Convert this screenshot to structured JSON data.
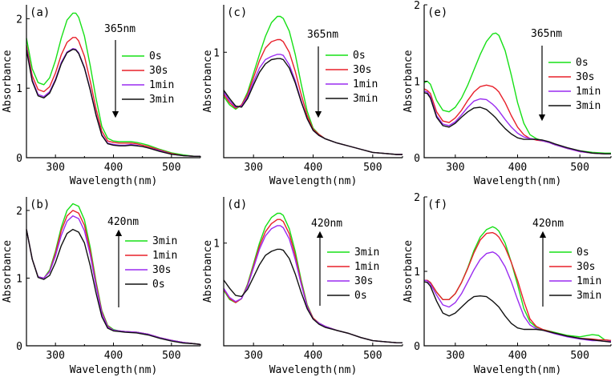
{
  "colors": {
    "green": "#17e017",
    "red": "#e8202a",
    "purple": "#9a2cf0",
    "black": "#111111"
  },
  "chart_data": [
    {
      "type": "line",
      "panel_label": "(a)",
      "annotation": "365nm",
      "arrow": "down",
      "xlabel": "Wavelength(nm)",
      "ylabel": "Absorbance",
      "xlim": [
        250,
        550
      ],
      "ylim": [
        0,
        2.2
      ],
      "xticks": [
        300,
        400,
        500
      ],
      "yticks": [
        0,
        1,
        2
      ],
      "x": [
        250,
        260,
        270,
        280,
        290,
        300,
        310,
        320,
        330,
        335,
        340,
        350,
        360,
        370,
        380,
        390,
        400,
        410,
        420,
        430,
        440,
        450,
        460,
        480,
        500,
        520,
        540,
        550
      ],
      "series": [
        {
          "name": "0s",
          "color": "green",
          "values": [
            1.72,
            1.28,
            1.08,
            1.05,
            1.15,
            1.4,
            1.72,
            1.98,
            2.08,
            2.08,
            2.02,
            1.75,
            1.32,
            0.85,
            0.45,
            0.28,
            0.24,
            0.23,
            0.23,
            0.23,
            0.22,
            0.2,
            0.18,
            0.12,
            0.07,
            0.04,
            0.02,
            0.02
          ]
        },
        {
          "name": "30s",
          "color": "red",
          "values": [
            1.62,
            1.18,
            0.98,
            0.95,
            1.02,
            1.22,
            1.48,
            1.66,
            1.73,
            1.73,
            1.68,
            1.46,
            1.1,
            0.7,
            0.38,
            0.24,
            0.22,
            0.21,
            0.21,
            0.21,
            0.2,
            0.18,
            0.16,
            0.11,
            0.06,
            0.03,
            0.02,
            0.02
          ]
        },
        {
          "name": "1min",
          "color": "purple",
          "values": [
            1.58,
            1.12,
            0.91,
            0.88,
            0.95,
            1.13,
            1.37,
            1.52,
            1.57,
            1.56,
            1.51,
            1.3,
            0.98,
            0.62,
            0.33,
            0.21,
            0.19,
            0.18,
            0.18,
            0.19,
            0.18,
            0.16,
            0.14,
            0.1,
            0.05,
            0.03,
            0.02,
            0.02
          ]
        },
        {
          "name": "3min",
          "color": "black",
          "values": [
            1.55,
            1.1,
            0.89,
            0.86,
            0.93,
            1.11,
            1.35,
            1.51,
            1.56,
            1.55,
            1.5,
            1.29,
            0.97,
            0.61,
            0.32,
            0.2,
            0.18,
            0.17,
            0.17,
            0.18,
            0.17,
            0.16,
            0.14,
            0.09,
            0.05,
            0.03,
            0.02,
            0.02
          ]
        }
      ]
    },
    {
      "type": "line",
      "panel_label": "(c)",
      "annotation": "365nm",
      "arrow": "down",
      "xlabel": "Wavelength(nm)",
      "ylabel": "Absorbance",
      "xlim": [
        250,
        550
      ],
      "ylim": [
        0,
        1.45
      ],
      "xticks": [
        300,
        400,
        500
      ],
      "yticks": [
        1
      ],
      "x": [
        250,
        260,
        270,
        280,
        290,
        300,
        310,
        320,
        330,
        340,
        345,
        350,
        360,
        370,
        380,
        390,
        400,
        410,
        420,
        440,
        460,
        480,
        500,
        520,
        540,
        550
      ],
      "series": [
        {
          "name": "0s",
          "color": "green",
          "values": [
            0.58,
            0.5,
            0.46,
            0.5,
            0.62,
            0.8,
            0.98,
            1.15,
            1.28,
            1.34,
            1.34,
            1.32,
            1.2,
            0.98,
            0.7,
            0.44,
            0.28,
            0.22,
            0.18,
            0.14,
            0.11,
            0.08,
            0.05,
            0.04,
            0.03,
            0.03
          ]
        },
        {
          "name": "30s",
          "color": "red",
          "values": [
            0.6,
            0.52,
            0.47,
            0.5,
            0.6,
            0.76,
            0.92,
            1.04,
            1.1,
            1.12,
            1.12,
            1.1,
            1.0,
            0.82,
            0.6,
            0.4,
            0.27,
            0.22,
            0.18,
            0.14,
            0.11,
            0.08,
            0.05,
            0.04,
            0.03,
            0.03
          ]
        },
        {
          "name": "1min",
          "color": "purple",
          "values": [
            0.62,
            0.54,
            0.48,
            0.49,
            0.58,
            0.72,
            0.85,
            0.93,
            0.96,
            0.98,
            0.98,
            0.97,
            0.88,
            0.73,
            0.54,
            0.37,
            0.26,
            0.21,
            0.18,
            0.14,
            0.11,
            0.08,
            0.05,
            0.04,
            0.03,
            0.03
          ]
        },
        {
          "name": "3min",
          "color": "black",
          "values": [
            0.64,
            0.56,
            0.49,
            0.48,
            0.56,
            0.69,
            0.81,
            0.89,
            0.93,
            0.94,
            0.94,
            0.93,
            0.85,
            0.71,
            0.53,
            0.37,
            0.26,
            0.21,
            0.18,
            0.14,
            0.11,
            0.08,
            0.05,
            0.04,
            0.03,
            0.03
          ]
        }
      ]
    },
    {
      "type": "line",
      "panel_label": "(e)",
      "annotation": "365nm",
      "arrow": "down",
      "xlabel": "Wavelength(nm)",
      "ylabel": "Absorbance",
      "xlim": [
        250,
        550
      ],
      "ylim": [
        0,
        2.0
      ],
      "xticks": [
        300,
        400,
        500
      ],
      "yticks": [
        0,
        1,
        2
      ],
      "x": [
        250,
        255,
        260,
        270,
        280,
        290,
        300,
        310,
        320,
        330,
        340,
        350,
        360,
        365,
        370,
        380,
        390,
        400,
        410,
        420,
        430,
        440,
        450,
        460,
        480,
        500,
        520,
        540,
        550
      ],
      "series": [
        {
          "name": "0s",
          "color": "green",
          "values": [
            0.98,
            1.0,
            0.96,
            0.75,
            0.62,
            0.6,
            0.66,
            0.78,
            0.95,
            1.15,
            1.35,
            1.52,
            1.62,
            1.63,
            1.6,
            1.4,
            1.08,
            0.72,
            0.45,
            0.3,
            0.25,
            0.22,
            0.2,
            0.17,
            0.12,
            0.09,
            0.07,
            0.06,
            0.06
          ]
        },
        {
          "name": "30s",
          "color": "red",
          "values": [
            0.9,
            0.88,
            0.84,
            0.6,
            0.48,
            0.46,
            0.52,
            0.62,
            0.75,
            0.86,
            0.93,
            0.95,
            0.93,
            0.9,
            0.86,
            0.72,
            0.55,
            0.4,
            0.3,
            0.25,
            0.23,
            0.22,
            0.2,
            0.17,
            0.12,
            0.08,
            0.06,
            0.05,
            0.05
          ]
        },
        {
          "name": "1min",
          "color": "purple",
          "values": [
            0.87,
            0.86,
            0.8,
            0.55,
            0.44,
            0.42,
            0.47,
            0.56,
            0.66,
            0.74,
            0.77,
            0.76,
            0.7,
            0.66,
            0.61,
            0.5,
            0.4,
            0.32,
            0.27,
            0.25,
            0.24,
            0.22,
            0.2,
            0.17,
            0.12,
            0.08,
            0.06,
            0.05,
            0.05
          ]
        },
        {
          "name": "3min",
          "color": "black",
          "values": [
            0.85,
            0.84,
            0.78,
            0.53,
            0.42,
            0.4,
            0.45,
            0.53,
            0.6,
            0.65,
            0.66,
            0.63,
            0.56,
            0.52,
            0.47,
            0.38,
            0.31,
            0.26,
            0.24,
            0.24,
            0.24,
            0.23,
            0.21,
            0.18,
            0.13,
            0.09,
            0.06,
            0.05,
            0.05
          ]
        }
      ]
    },
    {
      "type": "line",
      "panel_label": "(b)",
      "annotation": "420nm",
      "arrow": "up",
      "xlabel": "Wavelength(nm)",
      "ylabel": "Absorbance",
      "xlim": [
        250,
        550
      ],
      "ylim": [
        0,
        2.2
      ],
      "xticks": [
        300,
        400,
        500
      ],
      "yticks": [
        0,
        1,
        2
      ],
      "x": [
        250,
        260,
        270,
        280,
        290,
        300,
        310,
        320,
        330,
        340,
        350,
        360,
        370,
        380,
        390,
        400,
        410,
        420,
        440,
        460,
        480,
        500,
        520,
        540,
        550
      ],
      "series": [
        {
          "name": "3min",
          "color": "green",
          "values": [
            1.72,
            1.28,
            1.02,
            1.0,
            1.12,
            1.4,
            1.75,
            2.0,
            2.1,
            2.06,
            1.86,
            1.45,
            0.95,
            0.52,
            0.3,
            0.24,
            0.22,
            0.21,
            0.2,
            0.17,
            0.12,
            0.08,
            0.05,
            0.03,
            0.02
          ]
        },
        {
          "name": "1min",
          "color": "red",
          "values": [
            1.72,
            1.28,
            1.02,
            1.0,
            1.1,
            1.37,
            1.7,
            1.92,
            2.0,
            1.96,
            1.78,
            1.4,
            0.92,
            0.5,
            0.29,
            0.23,
            0.22,
            0.21,
            0.2,
            0.17,
            0.12,
            0.08,
            0.05,
            0.03,
            0.02
          ]
        },
        {
          "name": "30s",
          "color": "purple",
          "values": [
            1.72,
            1.28,
            1.02,
            1.0,
            1.09,
            1.33,
            1.63,
            1.84,
            1.92,
            1.88,
            1.7,
            1.34,
            0.88,
            0.48,
            0.28,
            0.23,
            0.22,
            0.21,
            0.2,
            0.17,
            0.12,
            0.08,
            0.05,
            0.03,
            0.02
          ]
        },
        {
          "name": "0s",
          "color": "black",
          "values": [
            1.72,
            1.28,
            1.01,
            0.98,
            1.04,
            1.23,
            1.48,
            1.66,
            1.72,
            1.68,
            1.52,
            1.18,
            0.78,
            0.43,
            0.26,
            0.22,
            0.21,
            0.2,
            0.19,
            0.16,
            0.11,
            0.07,
            0.04,
            0.03,
            0.02
          ]
        }
      ]
    },
    {
      "type": "line",
      "panel_label": "(d)",
      "annotation": "420nm",
      "arrow": "up",
      "xlabel": "Wavelength(nm)",
      "ylabel": "Absorbance",
      "xlim": [
        250,
        550
      ],
      "ylim": [
        0,
        1.45
      ],
      "xticks": [
        300,
        400,
        500
      ],
      "yticks": [
        1
      ],
      "x": [
        250,
        260,
        270,
        280,
        290,
        300,
        310,
        320,
        330,
        340,
        345,
        350,
        360,
        370,
        380,
        390,
        400,
        410,
        420,
        440,
        460,
        480,
        500,
        520,
        540,
        550
      ],
      "series": [
        {
          "name": "3min",
          "color": "green",
          "values": [
            0.54,
            0.45,
            0.42,
            0.46,
            0.6,
            0.8,
            1.0,
            1.16,
            1.25,
            1.29,
            1.29,
            1.27,
            1.14,
            0.92,
            0.64,
            0.4,
            0.27,
            0.22,
            0.19,
            0.15,
            0.12,
            0.08,
            0.05,
            0.04,
            0.03,
            0.03
          ]
        },
        {
          "name": "1min",
          "color": "red",
          "values": [
            0.55,
            0.46,
            0.42,
            0.46,
            0.59,
            0.78,
            0.97,
            1.11,
            1.19,
            1.23,
            1.23,
            1.21,
            1.09,
            0.88,
            0.62,
            0.39,
            0.27,
            0.22,
            0.19,
            0.15,
            0.12,
            0.08,
            0.05,
            0.04,
            0.03,
            0.03
          ]
        },
        {
          "name": "30s",
          "color": "purple",
          "values": [
            0.56,
            0.47,
            0.43,
            0.46,
            0.58,
            0.76,
            0.94,
            1.07,
            1.14,
            1.17,
            1.17,
            1.15,
            1.04,
            0.84,
            0.6,
            0.38,
            0.26,
            0.22,
            0.19,
            0.15,
            0.12,
            0.08,
            0.05,
            0.04,
            0.03,
            0.03
          ]
        },
        {
          "name": "0s",
          "color": "black",
          "values": [
            0.64,
            0.56,
            0.49,
            0.48,
            0.55,
            0.67,
            0.79,
            0.88,
            0.92,
            0.94,
            0.94,
            0.93,
            0.85,
            0.7,
            0.52,
            0.36,
            0.26,
            0.21,
            0.18,
            0.15,
            0.12,
            0.08,
            0.05,
            0.04,
            0.03,
            0.03
          ]
        }
      ]
    },
    {
      "type": "line",
      "panel_label": "(f)",
      "annotation": "420nm",
      "arrow": "up",
      "xlabel": "Wavelength(nm)",
      "ylabel": "Absorbance",
      "xlim": [
        250,
        550
      ],
      "ylim": [
        0,
        2.0
      ],
      "xticks": [
        300,
        400,
        500
      ],
      "yticks": [
        0,
        1,
        2
      ],
      "x": [
        250,
        255,
        260,
        270,
        280,
        290,
        300,
        310,
        320,
        330,
        340,
        350,
        360,
        365,
        370,
        380,
        390,
        400,
        410,
        420,
        430,
        440,
        460,
        480,
        500,
        520,
        530,
        540,
        550
      ],
      "series": [
        {
          "name": "0s",
          "color": "green",
          "values": [
            0.88,
            0.88,
            0.85,
            0.72,
            0.62,
            0.62,
            0.7,
            0.85,
            1.05,
            1.28,
            1.46,
            1.56,
            1.6,
            1.58,
            1.54,
            1.38,
            1.12,
            0.82,
            0.5,
            0.32,
            0.25,
            0.22,
            0.18,
            0.14,
            0.12,
            0.15,
            0.14,
            0.08,
            0.07
          ]
        },
        {
          "name": "30s",
          "color": "red",
          "values": [
            0.88,
            0.88,
            0.85,
            0.72,
            0.62,
            0.62,
            0.7,
            0.85,
            1.04,
            1.25,
            1.42,
            1.51,
            1.52,
            1.5,
            1.46,
            1.32,
            1.12,
            0.88,
            0.6,
            0.36,
            0.26,
            0.22,
            0.17,
            0.13,
            0.1,
            0.09,
            0.08,
            0.08,
            0.07
          ]
        },
        {
          "name": "1min",
          "color": "purple",
          "values": [
            0.88,
            0.87,
            0.83,
            0.68,
            0.55,
            0.52,
            0.58,
            0.7,
            0.86,
            1.02,
            1.16,
            1.24,
            1.26,
            1.24,
            1.2,
            1.06,
            0.86,
            0.62,
            0.4,
            0.28,
            0.23,
            0.21,
            0.16,
            0.12,
            0.09,
            0.07,
            0.07,
            0.06,
            0.06
          ]
        },
        {
          "name": "3min",
          "color": "black",
          "values": [
            0.86,
            0.85,
            0.8,
            0.6,
            0.44,
            0.4,
            0.44,
            0.52,
            0.6,
            0.66,
            0.67,
            0.66,
            0.6,
            0.56,
            0.52,
            0.4,
            0.3,
            0.24,
            0.22,
            0.22,
            0.22,
            0.21,
            0.17,
            0.13,
            0.1,
            0.08,
            0.07,
            0.06,
            0.05
          ]
        }
      ]
    }
  ]
}
